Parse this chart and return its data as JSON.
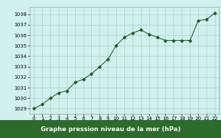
{
  "x": [
    0,
    1,
    2,
    3,
    4,
    5,
    6,
    7,
    8,
    9,
    10,
    11,
    12,
    13,
    14,
    15,
    16,
    17,
    18,
    19,
    20,
    21,
    22
  ],
  "y": [
    1029.0,
    1029.4,
    1030.0,
    1030.5,
    1030.7,
    1031.5,
    1031.8,
    1032.3,
    1033.0,
    1033.7,
    1035.0,
    1035.8,
    1036.2,
    1036.5,
    1036.1,
    1035.8,
    1035.5,
    1035.5,
    1035.5,
    1035.5,
    1037.4,
    1037.5,
    1038.1
  ],
  "line_color": "#1a5c1a",
  "marker": "D",
  "marker_size": 2.5,
  "bg_color": "#cff0ec",
  "grid_color": "#aacfca",
  "ylabel_ticks": [
    1029,
    1030,
    1031,
    1032,
    1033,
    1034,
    1035,
    1036,
    1037,
    1038
  ],
  "xlabel_ticks": [
    0,
    1,
    2,
    3,
    4,
    5,
    6,
    7,
    8,
    9,
    10,
    11,
    12,
    13,
    14,
    15,
    16,
    17,
    18,
    19,
    20,
    21,
    22
  ],
  "xlim": [
    -0.5,
    22.5
  ],
  "ylim": [
    1028.5,
    1038.7
  ],
  "xlabel": "Graphe pression niveau de la mer (hPa)",
  "bottom_bg": "#2d6b2d",
  "bottom_text_color": "#ffffff",
  "label_fontsize": 6.5,
  "tick_fontsize": 5.2
}
